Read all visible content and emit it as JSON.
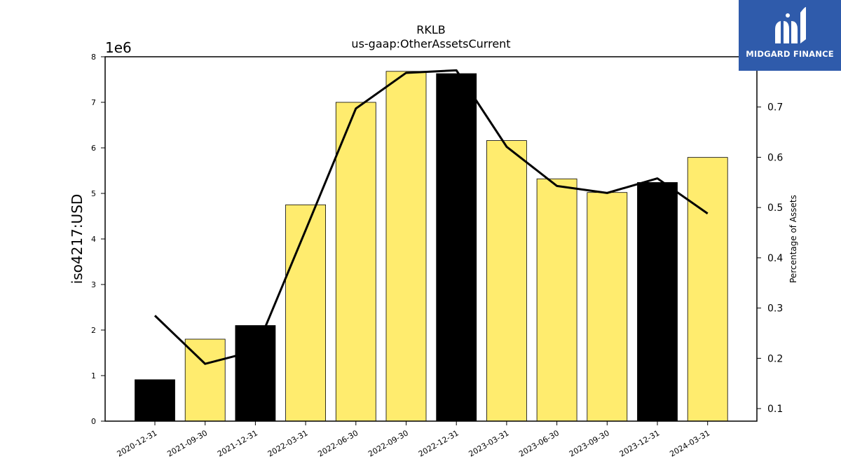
{
  "chart_data": {
    "type": "bar",
    "title": "RKLB",
    "subtitle": "us-gaap:OtherAssetsCurrent",
    "ylabel": "iso4217:USD",
    "y2label": "Percentage of Assets",
    "offset_label": "1e6",
    "categories": [
      "2020-12-31",
      "2021-09-30",
      "2021-12-31",
      "2022-03-31",
      "2022-06-30",
      "2022-09-30",
      "2022-12-31",
      "2023-03-31",
      "2023-06-30",
      "2023-09-30",
      "2023-12-31",
      "2024-03-31"
    ],
    "values": [
      910000,
      1800000,
      2100000,
      4750000,
      7000000,
      7680000,
      7630000,
      6160000,
      5320000,
      5020000,
      5240000,
      5790000
    ],
    "bar_colors": [
      "#000000",
      "#ffec6e",
      "#000000",
      "#ffec6e",
      "#ffec6e",
      "#ffec6e",
      "#000000",
      "#ffec6e",
      "#ffec6e",
      "#ffec6e",
      "#000000",
      "#ffec6e"
    ],
    "line_series": [
      0.285,
      0.189,
      0.215,
      0.455,
      0.697,
      0.768,
      0.773,
      0.621,
      0.543,
      0.529,
      0.558,
      0.488
    ],
    "ylim": [
      0,
      8000000
    ],
    "y2lim": [
      0.075,
      0.8
    ],
    "yticks": [
      "0",
      "1",
      "2",
      "3",
      "4",
      "5",
      "6",
      "7",
      "8"
    ],
    "y2ticks": [
      "0.1",
      "0.2",
      "0.3",
      "0.4",
      "0.5",
      "0.6",
      "0.7"
    ],
    "y2tick_values": [
      0.1,
      0.2,
      0.3,
      0.4,
      0.5,
      0.6,
      0.7
    ],
    "grid": false
  },
  "logo": {
    "text": "MIDGARD FINANCE",
    "icon": "midgard-logo-icon",
    "background": "#2f5bab"
  }
}
